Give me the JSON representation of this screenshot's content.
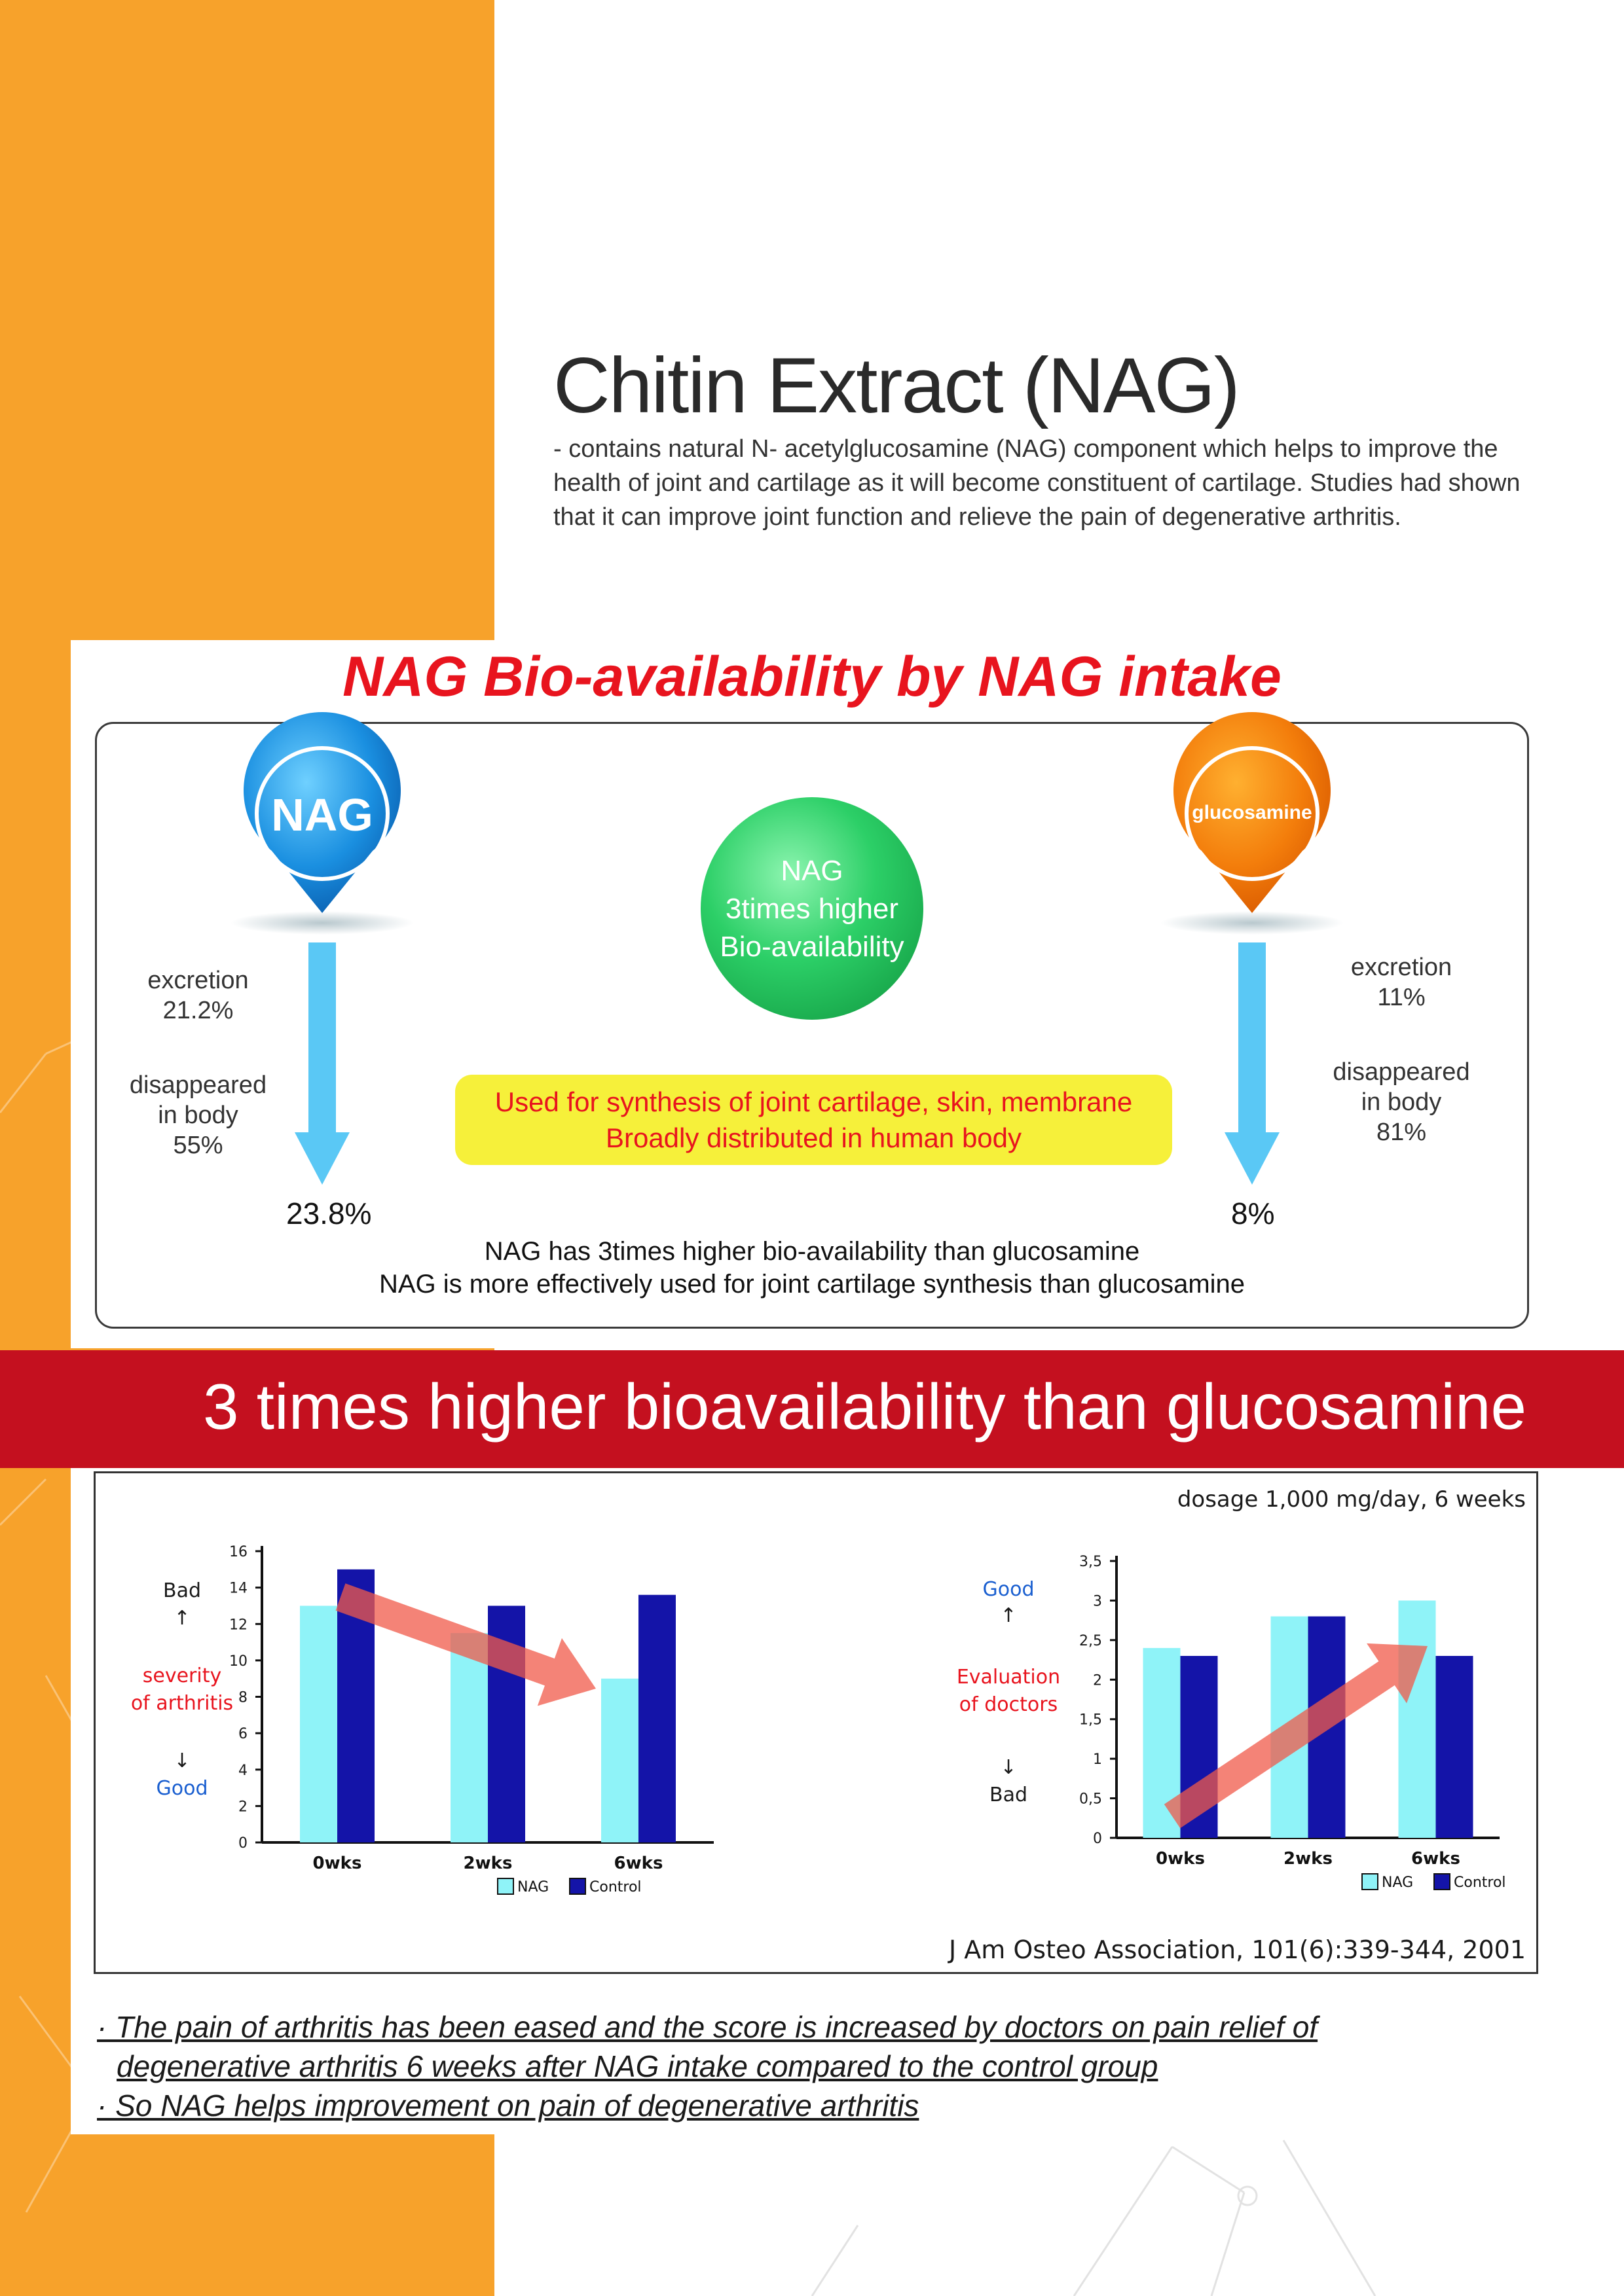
{
  "colors": {
    "orange": "#f7a22b",
    "red_band": "#c4101f",
    "headline_red": "#e8141e",
    "nag_light": "#8ff3f8",
    "control_dark": "#1414a8",
    "arrow_blue": "#5ac8f5",
    "highlight_yellow": "#f6f03a"
  },
  "header": {
    "title": "Chitin Extract (NAG)",
    "intro": "- contains natural N- acetylglucosamine (NAG) component which helps to improve the health of joint and cartilage as it will become constituent of cartilage. Studies had shown that it can improve joint function and relieve the pain of degenerative arthritis."
  },
  "bioavailability": {
    "title": "NAG Bio-availability by NAG intake",
    "nag_pin": "NAG",
    "glucosamine_pin": "glucosamine",
    "center_circle": [
      "NAG",
      "3times higher",
      "Bio-availability"
    ],
    "nag_excretion": [
      "excretion",
      "21.2%"
    ],
    "nag_disappeared": [
      "disappeared",
      "in body",
      "55%"
    ],
    "nag_result": "23.8%",
    "glu_excretion": [
      "excretion",
      "11%"
    ],
    "glu_disappeared": [
      "disappeared",
      "in body",
      "81%"
    ],
    "glu_result": "8%",
    "yellow_box": [
      "Used for synthesis of joint cartilage, skin, membrane",
      "Broadly distributed in human body"
    ],
    "summary": [
      "NAG has 3times higher bio-availability than glucosamine",
      "NAG is more effectively used for joint cartilage synthesis than glucosamine"
    ]
  },
  "band": {
    "text": "3 times higher bioavailability than glucosamine"
  },
  "study": {
    "dosage": "dosage 1,000 mg/day, 6 weeks",
    "citation": "J Am Osteo Association, 101(6):339-344, 2001"
  },
  "chart_data": [
    {
      "type": "bar",
      "categories": [
        "0wks",
        "2wks",
        "6wks"
      ],
      "series": [
        {
          "name": "NAG",
          "values": [
            13,
            11.5,
            9
          ]
        },
        {
          "name": "Control",
          "values": [
            15,
            13,
            13.6
          ]
        }
      ],
      "ylim": [
        0,
        16
      ],
      "yticks": [
        "0",
        "2",
        "4",
        "6",
        "8",
        "10",
        "12",
        "14",
        "16"
      ],
      "ylabel": [
        "Bad",
        "↑",
        "severity",
        "of arthritis",
        "↓",
        "Good"
      ],
      "legend": [
        "NAG",
        "Control"
      ]
    },
    {
      "type": "bar",
      "categories": [
        "0wks",
        "2wks",
        "6wks"
      ],
      "series": [
        {
          "name": "NAG",
          "values": [
            2.4,
            2.8,
            3.0
          ]
        },
        {
          "name": "Control",
          "values": [
            2.3,
            2.8,
            2.3
          ]
        }
      ],
      "ylim": [
        0,
        3.5
      ],
      "yticks": [
        "0",
        "0,5",
        "1",
        "1,5",
        "2",
        "2,5",
        "3",
        "3,5"
      ],
      "ylabel": [
        "Good",
        "↑",
        "Evaluation",
        "of doctors",
        "↓",
        "Bad"
      ],
      "legend": [
        "NAG",
        "Control"
      ]
    }
  ],
  "notes": [
    "· The pain of arthritis has been eased and the score is increased by doctors on pain relief of",
    "degenerative arthritis 6 weeks after NAG intake compared to the control group",
    "· So NAG helps improvement on pain of degenerative arthritis"
  ]
}
